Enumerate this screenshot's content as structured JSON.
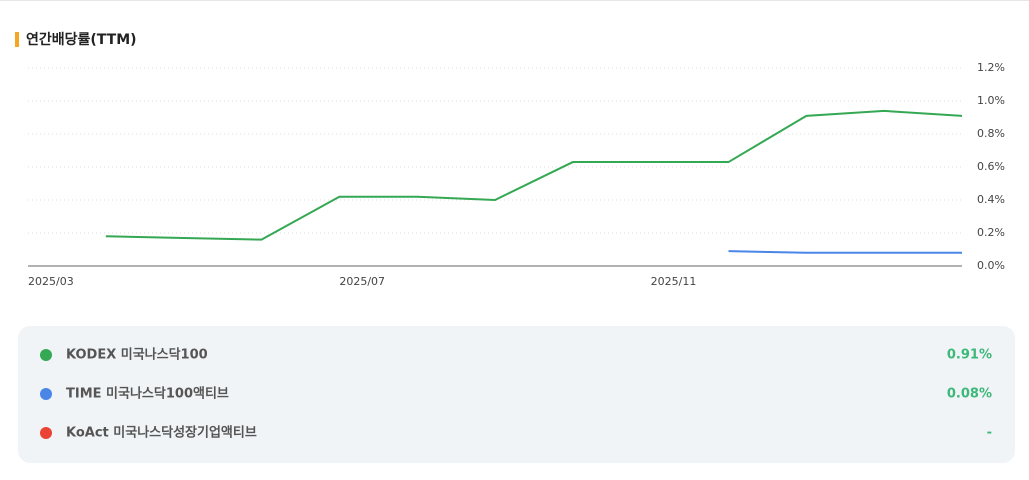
{
  "chart_data": {
    "type": "line",
    "title": "연간배당률(TTM)",
    "categories": [
      "2025/03",
      null,
      null,
      null,
      "2025/07",
      null,
      null,
      null,
      "2025/11",
      null,
      null,
      null,
      null
    ],
    "series": [
      {
        "name": "KODEX 미국나스닥100",
        "color": "#34a853",
        "latest_label": "0.91%",
        "values": [
          null,
          0.18,
          0.17,
          0.16,
          0.42,
          0.42,
          0.4,
          0.63,
          0.63,
          0.63,
          0.91,
          0.94,
          0.91
        ]
      },
      {
        "name": "TIME 미국나스닥100액티브",
        "color": "#4a86e8",
        "latest_label": "0.08%",
        "values": [
          null,
          null,
          null,
          null,
          null,
          null,
          null,
          null,
          null,
          0.09,
          0.08,
          0.08,
          0.08
        ]
      },
      {
        "name": "KoAct 미국나스닥성장기업액티브",
        "color": "#ea4335",
        "latest_label": "-",
        "values": [
          null,
          null,
          null,
          null,
          null,
          null,
          null,
          null,
          null,
          null,
          null,
          null,
          null
        ]
      }
    ],
    "ylim": [
      0,
      1.2
    ],
    "yticks": [
      {
        "value": 0,
        "label": "0.0%"
      },
      {
        "value": 0.2,
        "label": "0.2%"
      },
      {
        "value": 0.4,
        "label": "0.4%"
      },
      {
        "value": 0.6,
        "label": "0.6%"
      },
      {
        "value": 0.8,
        "label": "0.8%"
      },
      {
        "value": 1.0,
        "label": "1.0%"
      },
      {
        "value": 1.2,
        "label": "1.2%"
      }
    ],
    "grid": true
  }
}
